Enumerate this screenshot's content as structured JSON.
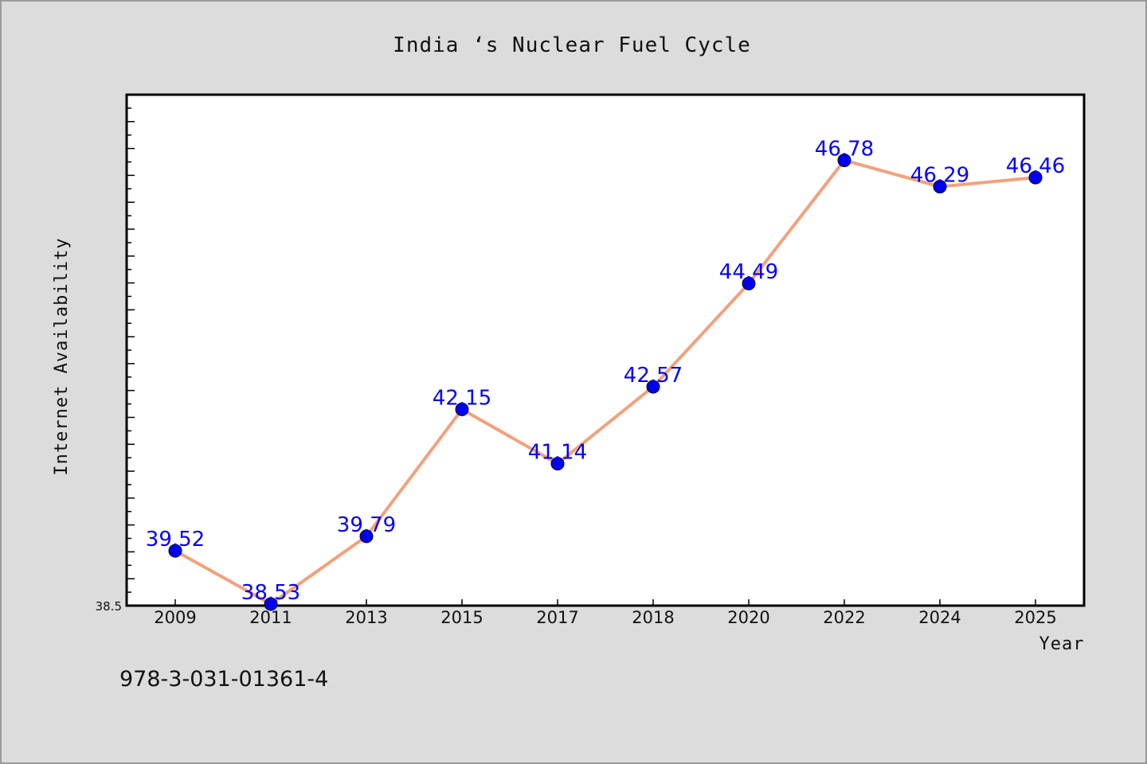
{
  "chart_data": {
    "type": "line",
    "title": "India ‘s Nuclear Fuel Cycle",
    "xlabel": "Year",
    "ylabel": "Internet Availability",
    "categories": [
      "2009",
      "2011",
      "2013",
      "2015",
      "2017",
      "2018",
      "2020",
      "2022",
      "2024",
      "2025"
    ],
    "series": [
      {
        "values": [
          39.52,
          38.53,
          39.79,
          42.15,
          41.14,
          42.57,
          44.49,
          46.78,
          46.29,
          46.46
        ],
        "labels": [
          "39.52",
          "38.53",
          "39.79",
          "42.15",
          "41.14",
          "42.57",
          "44.49",
          "46.78",
          "46.29",
          "46.46"
        ]
      }
    ],
    "yticks": [
      "38.5"
    ],
    "ylim": [
      38.5,
      48
    ],
    "grid": false,
    "legend": "none",
    "colors": {
      "line": "#f4a07c",
      "marker": "#0000ee",
      "data_label": "#0000ff"
    }
  },
  "footnote": "978-3-031-01361-4"
}
